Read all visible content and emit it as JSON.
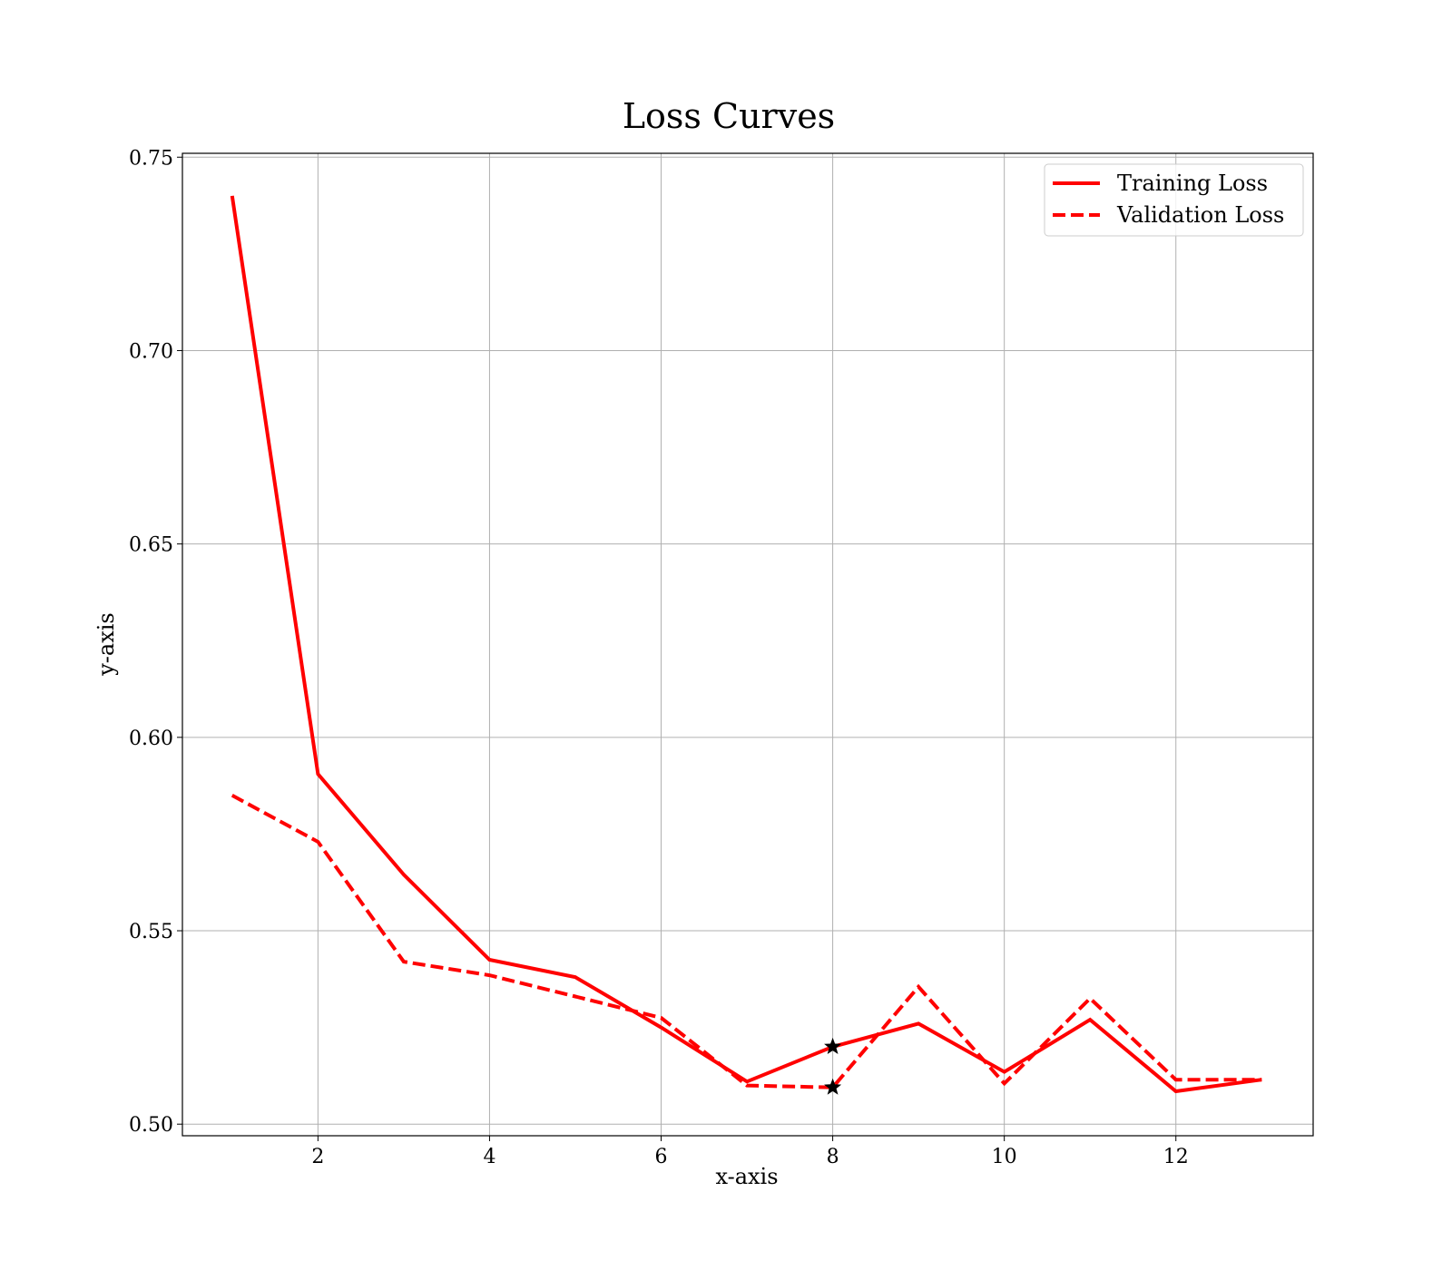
{
  "chart_data": {
    "type": "line",
    "title": "Loss Curves",
    "xlabel": "x-axis",
    "ylabel": "y-axis",
    "x": [
      1,
      2,
      3,
      4,
      5,
      6,
      7,
      8,
      9,
      10,
      11,
      12,
      13
    ],
    "xlim": [
      0.42,
      13.6
    ],
    "ylim": [
      0.497,
      0.751
    ],
    "xticks": [
      2,
      4,
      6,
      8,
      10,
      12
    ],
    "xtick_labels": [
      "2",
      "4",
      "6",
      "8",
      "10",
      "12"
    ],
    "yticks": [
      0.5,
      0.55,
      0.6,
      0.65,
      0.7,
      0.75
    ],
    "ytick_labels": [
      "0.50",
      "0.55",
      "0.60",
      "0.65",
      "0.70",
      "0.75"
    ],
    "grid": true,
    "legend_position": "top-right",
    "series": [
      {
        "name": "Training Loss",
        "style": "solid",
        "color": "#ff0000",
        "values": [
          0.74,
          0.5905,
          0.5645,
          0.5425,
          0.538,
          0.525,
          0.511,
          0.52,
          0.526,
          0.5135,
          0.527,
          0.5085,
          0.5115
        ]
      },
      {
        "name": "Validation Loss",
        "style": "dashed",
        "color": "#ff0000",
        "values": [
          0.585,
          0.573,
          0.542,
          0.5385,
          0.533,
          0.5275,
          0.51,
          0.5095,
          0.5355,
          0.5105,
          0.5325,
          0.5115,
          0.5115
        ]
      }
    ],
    "markers": [
      {
        "x": 8,
        "y": 0.52,
        "symbol": "star",
        "color": "#000000"
      },
      {
        "x": 8,
        "y": 0.5095,
        "symbol": "star",
        "color": "#000000"
      }
    ]
  }
}
